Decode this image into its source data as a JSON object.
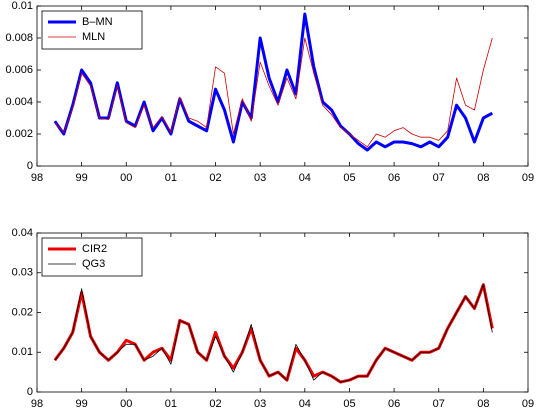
{
  "chart_data": [
    {
      "type": "line",
      "x": [
        1998.4,
        1998.6,
        1998.8,
        1999.0,
        1999.2,
        1999.4,
        1999.6,
        1999.8,
        2000.0,
        2000.2,
        2000.4,
        2000.6,
        2000.8,
        2001.0,
        2001.2,
        2001.4,
        2001.6,
        2001.8,
        2002.0,
        2002.2,
        2002.4,
        2002.6,
        2002.8,
        2003.0,
        2003.2,
        2003.4,
        2003.6,
        2003.8,
        2004.0,
        2004.2,
        2004.4,
        2004.6,
        2004.8,
        2005.0,
        2005.2,
        2005.4,
        2005.6,
        2005.8,
        2006.0,
        2006.2,
        2006.4,
        2006.6,
        2006.8,
        2007.0,
        2007.2,
        2007.4,
        2007.6,
        2007.8,
        2008.0,
        2008.2
      ],
      "series": [
        {
          "name": "B–MN",
          "color": "#0000ff",
          "width": 3,
          "values": [
            0.0028,
            0.002,
            0.0038,
            0.006,
            0.0052,
            0.003,
            0.003,
            0.0052,
            0.0028,
            0.0025,
            0.004,
            0.0022,
            0.003,
            0.002,
            0.0042,
            0.0028,
            0.0025,
            0.0022,
            0.0048,
            0.0035,
            0.0015,
            0.004,
            0.003,
            0.008,
            0.0055,
            0.004,
            0.006,
            0.0045,
            0.0095,
            0.0062,
            0.004,
            0.0035,
            0.0025,
            0.002,
            0.0014,
            0.001,
            0.0015,
            0.0012,
            0.0015,
            0.0015,
            0.0014,
            0.0012,
            0.0015,
            0.0012,
            0.0018,
            0.0038,
            0.003,
            0.0015,
            0.003,
            0.0033
          ]
        },
        {
          "name": "MLN",
          "color": "#cc0000",
          "width": 0.8,
          "values": [
            0.0027,
            0.0021,
            0.0036,
            0.0058,
            0.005,
            0.003,
            0.0029,
            0.005,
            0.0027,
            0.0024,
            0.0038,
            0.0024,
            0.0031,
            0.0021,
            0.0043,
            0.003,
            0.0028,
            0.0024,
            0.0062,
            0.0058,
            0.002,
            0.0042,
            0.0028,
            0.0065,
            0.005,
            0.0038,
            0.0055,
            0.0042,
            0.008,
            0.0058,
            0.0038,
            0.0032,
            0.0024,
            0.002,
            0.0016,
            0.0012,
            0.002,
            0.0018,
            0.0022,
            0.0024,
            0.002,
            0.0018,
            0.0018,
            0.0016,
            0.0022,
            0.0055,
            0.0038,
            0.0035,
            0.006,
            0.008
          ]
        }
      ],
      "xlim": [
        1998,
        2009
      ],
      "xticks": [
        {
          "value": 1998,
          "label": "98"
        },
        {
          "value": 1999,
          "label": "99"
        },
        {
          "value": 2000,
          "label": "00"
        },
        {
          "value": 2001,
          "label": "01"
        },
        {
          "value": 2002,
          "label": "02"
        },
        {
          "value": 2003,
          "label": "03"
        },
        {
          "value": 2004,
          "label": "04"
        },
        {
          "value": 2005,
          "label": "05"
        },
        {
          "value": 2006,
          "label": "06"
        },
        {
          "value": 2007,
          "label": "07"
        },
        {
          "value": 2008,
          "label": "08"
        },
        {
          "value": 2009,
          "label": "09"
        }
      ],
      "ylim": [
        0,
        0.01
      ],
      "yticks": [
        0,
        0.002,
        0.004,
        0.006,
        0.008,
        0.01
      ],
      "legend": "upper left"
    },
    {
      "type": "line",
      "x": [
        1998.4,
        1998.6,
        1998.8,
        1999.0,
        1999.2,
        1999.4,
        1999.6,
        1999.8,
        2000.0,
        2000.2,
        2000.4,
        2000.6,
        2000.8,
        2001.0,
        2001.2,
        2001.4,
        2001.6,
        2001.8,
        2002.0,
        2002.2,
        2002.4,
        2002.6,
        2002.8,
        2003.0,
        2003.2,
        2003.4,
        2003.6,
        2003.8,
        2004.0,
        2004.2,
        2004.4,
        2004.6,
        2004.8,
        2005.0,
        2005.2,
        2005.4,
        2005.6,
        2005.8,
        2006.0,
        2006.2,
        2006.4,
        2006.6,
        2006.8,
        2007.0,
        2007.2,
        2007.4,
        2007.6,
        2007.8,
        2008.0,
        2008.2
      ],
      "series": [
        {
          "name": "CIR2",
          "color": "#ee0000",
          "width": 3,
          "values": [
            0.008,
            0.011,
            0.015,
            0.025,
            0.014,
            0.01,
            0.008,
            0.01,
            0.013,
            0.012,
            0.008,
            0.01,
            0.011,
            0.008,
            0.018,
            0.017,
            0.01,
            0.008,
            0.015,
            0.009,
            0.006,
            0.01,
            0.016,
            0.008,
            0.004,
            0.005,
            0.003,
            0.011,
            0.008,
            0.004,
            0.005,
            0.004,
            0.0025,
            0.003,
            0.004,
            0.004,
            0.008,
            0.011,
            0.01,
            0.009,
            0.008,
            0.01,
            0.01,
            0.011,
            0.016,
            0.02,
            0.024,
            0.021,
            0.027,
            0.016
          ]
        },
        {
          "name": "QG3",
          "color": "#000000",
          "width": 0.8,
          "values": [
            0.008,
            0.011,
            0.015,
            0.026,
            0.014,
            0.01,
            0.008,
            0.01,
            0.012,
            0.012,
            0.008,
            0.009,
            0.011,
            0.007,
            0.018,
            0.017,
            0.01,
            0.008,
            0.014,
            0.009,
            0.005,
            0.01,
            0.017,
            0.008,
            0.004,
            0.005,
            0.003,
            0.012,
            0.008,
            0.003,
            0.005,
            0.004,
            0.0025,
            0.003,
            0.004,
            0.004,
            0.008,
            0.011,
            0.01,
            0.009,
            0.008,
            0.01,
            0.01,
            0.011,
            0.016,
            0.02,
            0.024,
            0.021,
            0.027,
            0.015
          ]
        }
      ],
      "xlim": [
        1998,
        2009
      ],
      "xticks": [
        {
          "value": 1998,
          "label": "98"
        },
        {
          "value": 1999,
          "label": "99"
        },
        {
          "value": 2000,
          "label": "00"
        },
        {
          "value": 2001,
          "label": "01"
        },
        {
          "value": 2002,
          "label": "02"
        },
        {
          "value": 2003,
          "label": "03"
        },
        {
          "value": 2004,
          "label": "04"
        },
        {
          "value": 2005,
          "label": "05"
        },
        {
          "value": 2006,
          "label": "06"
        },
        {
          "value": 2007,
          "label": "07"
        },
        {
          "value": 2008,
          "label": "08"
        },
        {
          "value": 2009,
          "label": "09"
        }
      ],
      "ylim": [
        0,
        0.04
      ],
      "yticks": [
        0,
        0.01,
        0.02,
        0.03,
        0.04
      ],
      "legend": "upper left"
    }
  ]
}
